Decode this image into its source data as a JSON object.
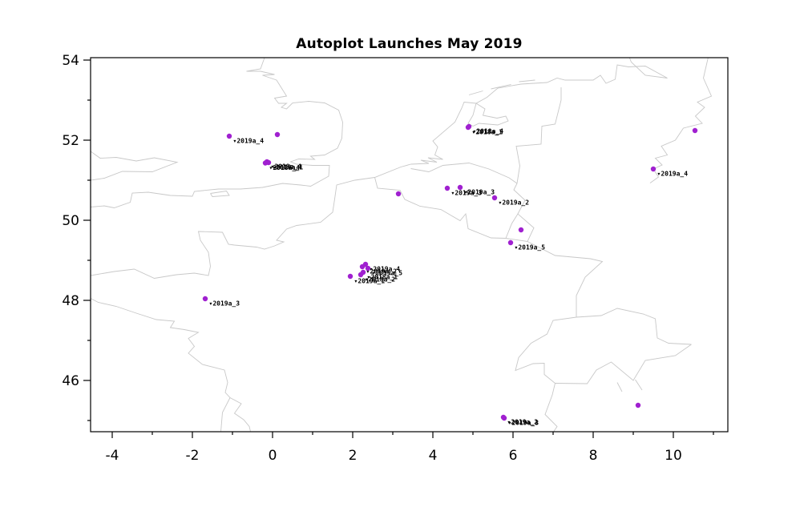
{
  "chart_data": {
    "type": "scatter",
    "title": "Autoplot Launches May 2019",
    "xlabel": "",
    "ylabel": "",
    "xlim": [
      -4.54,
      11.36
    ],
    "ylim": [
      44.72,
      54.06
    ],
    "grid": false,
    "legend": "none",
    "x_ticks_major": [
      -4,
      -2,
      0,
      2,
      4,
      6,
      8,
      10
    ],
    "x_tick_labels": [
      "-4",
      "-2",
      "0",
      "2",
      "4",
      "6",
      "8",
      "10"
    ],
    "y_ticks_major": [
      46,
      48,
      50,
      52,
      54
    ],
    "y_tick_labels": [
      "46",
      "48",
      "50",
      "52",
      "54"
    ],
    "minor_tick_step": 1,
    "marker_color": "#a020d0",
    "map_color": "#c8c8c8",
    "label_marker": "▾",
    "points": [
      {
        "x": -1.08,
        "y": 52.1,
        "label": "2019a_4"
      },
      {
        "x": 0.12,
        "y": 52.14,
        "label": ""
      },
      {
        "x": -0.14,
        "y": 51.46,
        "label": "2019a_4"
      },
      {
        "x": -0.1,
        "y": 51.44,
        "label": "2019a_1"
      },
      {
        "x": -0.18,
        "y": 51.43,
        "label": "2018a_4"
      },
      {
        "x": 4.9,
        "y": 52.34,
        "label": "2018a_4"
      },
      {
        "x": 4.88,
        "y": 52.32,
        "label": "2018a_1"
      },
      {
        "x": 10.54,
        "y": 52.24,
        "label": ""
      },
      {
        "x": 9.5,
        "y": 51.28,
        "label": "2019a_4"
      },
      {
        "x": 4.36,
        "y": 50.8,
        "label": "2019a_3"
      },
      {
        "x": 4.68,
        "y": 50.82,
        "label": "2019a_3"
      },
      {
        "x": 5.54,
        "y": 50.56,
        "label": "2019a_2"
      },
      {
        "x": 3.14,
        "y": 50.66,
        "label": ""
      },
      {
        "x": 6.2,
        "y": 49.76,
        "label": ""
      },
      {
        "x": 5.94,
        "y": 49.44,
        "label": "2019a_5"
      },
      {
        "x": 1.94,
        "y": 48.6,
        "label": "2019a_1"
      },
      {
        "x": 2.24,
        "y": 48.84,
        "label": "2019a_2"
      },
      {
        "x": 2.32,
        "y": 48.9,
        "label": "2019a_4"
      },
      {
        "x": 2.38,
        "y": 48.8,
        "label": "2019a_5"
      },
      {
        "x": 2.26,
        "y": 48.7,
        "label": "2018a_1"
      },
      {
        "x": 2.2,
        "y": 48.64,
        "label": "2018a_2"
      },
      {
        "x": -1.68,
        "y": 48.04,
        "label": "2019a_3"
      },
      {
        "x": 5.76,
        "y": 45.08,
        "label": "2019a_2"
      },
      {
        "x": 5.78,
        "y": 45.06,
        "label": "2019a_3"
      },
      {
        "x": 9.12,
        "y": 45.38,
        "label": ""
      }
    ],
    "map_lines": [
      [
        [
          -0.15,
          54.2
        ],
        [
          -0.3,
          53.78
        ],
        [
          -0.65,
          53.72
        ],
        [
          -0.3,
          53.72
        ],
        [
          0.05,
          53.64
        ],
        [
          -0.25,
          53.62
        ],
        [
          0.1,
          53.5
        ],
        [
          0.35,
          53.1
        ],
        [
          0.05,
          53.05
        ],
        [
          0.15,
          52.92
        ],
        [
          0.35,
          52.92
        ],
        [
          0.22,
          52.82
        ],
        [
          0.35,
          52.78
        ],
        [
          0.5,
          52.93
        ],
        [
          0.9,
          52.97
        ],
        [
          1.3,
          52.93
        ],
        [
          1.65,
          52.75
        ],
        [
          1.75,
          52.45
        ],
        [
          1.73,
          52.05
        ],
        [
          1.62,
          51.8
        ],
        [
          1.3,
          51.63
        ],
        [
          0.95,
          51.6
        ],
        [
          1.05,
          51.52
        ],
        [
          0.65,
          51.53
        ],
        [
          0.45,
          51.46
        ],
        [
          0.6,
          51.4
        ],
        [
          1.0,
          51.37
        ],
        [
          1.42,
          51.37
        ],
        [
          1.4,
          51.1
        ],
        [
          0.95,
          50.85
        ],
        [
          0.7,
          50.88
        ],
        [
          0.25,
          50.92
        ],
        [
          -0.25,
          50.82
        ],
        [
          -0.8,
          50.78
        ],
        [
          -1.35,
          50.78
        ],
        [
          -1.95,
          50.72
        ],
        [
          -2.0,
          50.6
        ],
        [
          -2.55,
          50.62
        ],
        [
          -3.1,
          50.7
        ],
        [
          -3.5,
          50.68
        ],
        [
          -3.55,
          50.45
        ],
        [
          -3.95,
          50.31
        ],
        [
          -4.2,
          50.36
        ],
        [
          -4.54,
          50.33
        ]
      ],
      [
        [
          -4.54,
          51.0
        ],
        [
          -4.2,
          51.05
        ],
        [
          -3.75,
          51.22
        ],
        [
          -3.0,
          51.21
        ],
        [
          -2.38,
          51.45
        ],
        [
          -2.95,
          51.56
        ],
        [
          -3.4,
          51.48
        ],
        [
          -3.9,
          51.57
        ],
        [
          -4.3,
          51.55
        ],
        [
          -4.54,
          51.72
        ]
      ],
      [
        [
          -1.55,
          50.67
        ],
        [
          -1.15,
          50.73
        ],
        [
          -1.08,
          50.62
        ],
        [
          -1.5,
          50.59
        ],
        [
          -1.55,
          50.67
        ]
      ],
      [
        [
          -4.54,
          48.62
        ],
        [
          -3.95,
          48.72
        ],
        [
          -3.45,
          48.78
        ],
        [
          -2.95,
          48.55
        ],
        [
          -2.4,
          48.64
        ],
        [
          -1.95,
          48.68
        ],
        [
          -1.6,
          48.62
        ],
        [
          -1.55,
          48.85
        ],
        [
          -1.6,
          49.2
        ],
        [
          -1.8,
          49.5
        ],
        [
          -1.85,
          49.72
        ],
        [
          -1.25,
          49.7
        ],
        [
          -1.1,
          49.4
        ],
        [
          -0.95,
          49.38
        ],
        [
          -0.4,
          49.33
        ],
        [
          -0.2,
          49.28
        ],
        [
          0.05,
          49.36
        ],
        [
          0.28,
          49.46
        ],
        [
          0.1,
          49.5
        ],
        [
          0.35,
          49.78
        ],
        [
          0.6,
          49.87
        ],
        [
          1.2,
          49.95
        ],
        [
          1.5,
          50.2
        ],
        [
          1.55,
          50.53
        ],
        [
          1.6,
          50.88
        ],
        [
          2.05,
          51.0
        ],
        [
          2.55,
          51.07
        ],
        [
          3.2,
          51.33
        ],
        [
          3.45,
          51.4
        ]
      ],
      [
        [
          3.45,
          51.4
        ],
        [
          3.9,
          51.42
        ],
        [
          3.7,
          51.5
        ],
        [
          4.1,
          51.45
        ],
        [
          3.88,
          51.56
        ],
        [
          4.25,
          51.52
        ],
        [
          4.05,
          51.63
        ],
        [
          4.12,
          51.83
        ],
        [
          4.0,
          51.98
        ],
        [
          4.55,
          52.45
        ],
        [
          4.72,
          52.8
        ],
        [
          4.78,
          52.95
        ],
        [
          5.08,
          52.92
        ],
        [
          5.35,
          53.07
        ],
        [
          5.62,
          53.3
        ],
        [
          6.2,
          53.4
        ],
        [
          6.85,
          53.44
        ],
        [
          7.1,
          53.55
        ],
        [
          7.3,
          53.5
        ],
        [
          8.0,
          53.5
        ],
        [
          8.18,
          53.62
        ],
        [
          8.32,
          53.42
        ],
        [
          8.55,
          53.52
        ],
        [
          8.6,
          53.88
        ],
        [
          8.88,
          53.83
        ],
        [
          9.3,
          53.85
        ],
        [
          9.85,
          53.55
        ],
        [
          9.3,
          53.62
        ],
        [
          8.95,
          53.95
        ],
        [
          8.85,
          54.2
        ]
      ],
      [
        [
          5.08,
          52.92
        ],
        [
          5.3,
          52.78
        ],
        [
          5.25,
          52.62
        ],
        [
          5.6,
          52.55
        ],
        [
          5.82,
          52.6
        ],
        [
          5.88,
          52.48
        ],
        [
          5.62,
          52.38
        ],
        [
          5.15,
          52.42
        ],
        [
          5.0,
          52.35
        ],
        [
          4.88,
          52.42
        ],
        [
          5.0,
          52.62
        ],
        [
          5.08,
          52.92
        ]
      ],
      [
        [
          4.9,
          53.13
        ],
        [
          5.25,
          53.23
        ]
      ],
      [
        [
          5.45,
          53.28
        ],
        [
          5.95,
          53.39
        ]
      ],
      [
        [
          6.15,
          53.46
        ],
        [
          6.55,
          53.5
        ]
      ],
      [
        [
          2.55,
          51.07
        ],
        [
          2.62,
          50.8
        ],
        [
          3.18,
          50.75
        ],
        [
          3.3,
          50.52
        ],
        [
          3.68,
          50.35
        ],
        [
          4.2,
          50.27
        ],
        [
          4.68,
          49.99
        ],
        [
          4.82,
          50.16
        ],
        [
          4.88,
          49.79
        ],
        [
          5.45,
          49.56
        ],
        [
          5.82,
          49.55
        ]
      ],
      [
        [
          5.82,
          49.55
        ],
        [
          6.36,
          49.47
        ],
        [
          6.52,
          49.81
        ],
        [
          6.12,
          50.16
        ],
        [
          5.97,
          49.92
        ],
        [
          5.82,
          49.55
        ]
      ],
      [
        [
          6.12,
          50.16
        ],
        [
          6.3,
          50.5
        ],
        [
          6.02,
          50.76
        ],
        [
          6.1,
          50.92
        ]
      ],
      [
        [
          3.45,
          51.29
        ],
        [
          3.9,
          51.21
        ],
        [
          4.25,
          51.37
        ],
        [
          4.9,
          51.43
        ],
        [
          5.4,
          51.28
        ],
        [
          5.9,
          51.06
        ],
        [
          6.1,
          50.92
        ]
      ],
      [
        [
          6.1,
          50.92
        ],
        [
          6.17,
          51.36
        ],
        [
          6.08,
          51.85
        ],
        [
          6.7,
          51.9
        ],
        [
          6.72,
          52.35
        ],
        [
          7.05,
          52.4
        ],
        [
          7.2,
          53.0
        ],
        [
          7.2,
          53.32
        ]
      ],
      [
        [
          6.36,
          49.47
        ],
        [
          7.05,
          49.12
        ],
        [
          7.93,
          49.04
        ],
        [
          8.23,
          48.97
        ],
        [
          7.8,
          48.58
        ],
        [
          7.58,
          48.12
        ],
        [
          7.58,
          47.58
        ]
      ],
      [
        [
          7.58,
          47.58
        ],
        [
          7.0,
          47.5
        ],
        [
          6.85,
          47.16
        ],
        [
          6.45,
          46.93
        ],
        [
          6.14,
          46.57
        ],
        [
          6.06,
          46.25
        ],
        [
          6.5,
          46.42
        ],
        [
          6.78,
          46.43
        ],
        [
          6.78,
          46.15
        ],
        [
          7.05,
          45.93
        ],
        [
          6.98,
          45.64
        ],
        [
          6.8,
          45.15
        ],
        [
          7.1,
          44.85
        ],
        [
          6.93,
          44.6
        ]
      ],
      [
        [
          7.58,
          47.58
        ],
        [
          8.2,
          47.62
        ],
        [
          8.6,
          47.8
        ],
        [
          9.25,
          47.66
        ],
        [
          9.55,
          47.54
        ],
        [
          9.6,
          47.06
        ],
        [
          9.88,
          46.93
        ],
        [
          10.45,
          46.9
        ]
      ],
      [
        [
          10.45,
          46.9
        ],
        [
          10.05,
          46.62
        ],
        [
          9.3,
          46.5
        ],
        [
          9.0,
          46.0
        ],
        [
          8.45,
          46.46
        ],
        [
          8.08,
          46.26
        ],
        [
          7.85,
          45.92
        ],
        [
          7.05,
          45.93
        ]
      ],
      [
        [
          10.9,
          54.2
        ],
        [
          10.75,
          53.55
        ],
        [
          10.95,
          53.1
        ],
        [
          10.6,
          52.95
        ],
        [
          10.78,
          52.82
        ],
        [
          10.55,
          52.6
        ],
        [
          10.72,
          52.42
        ],
        [
          10.25,
          52.3
        ],
        [
          10.05,
          52.0
        ],
        [
          9.7,
          51.85
        ],
        [
          9.85,
          51.63
        ],
        [
          9.55,
          51.55
        ],
        [
          9.72,
          51.38
        ],
        [
          9.5,
          51.28
        ],
        [
          9.63,
          51.08
        ],
        [
          9.42,
          50.93
        ]
      ],
      [
        [
          -4.54,
          48.05
        ],
        [
          -4.35,
          47.95
        ],
        [
          -3.9,
          47.85
        ],
        [
          -3.4,
          47.68
        ],
        [
          -2.9,
          47.52
        ],
        [
          -2.45,
          47.48
        ],
        [
          -2.55,
          47.32
        ],
        [
          -2.2,
          47.27
        ],
        [
          -1.85,
          47.2
        ],
        [
          -2.1,
          47.05
        ],
        [
          -1.95,
          46.85
        ],
        [
          -2.1,
          46.68
        ],
        [
          -1.75,
          46.4
        ],
        [
          -1.2,
          46.26
        ],
        [
          -1.12,
          45.95
        ],
        [
          -1.18,
          45.7
        ],
        [
          -1.06,
          45.57
        ],
        [
          -0.78,
          45.42
        ],
        [
          -0.95,
          45.18
        ],
        [
          -0.72,
          45.02
        ],
        [
          -0.58,
          44.85
        ],
        [
          -0.52,
          44.6
        ]
      ],
      [
        [
          -1.06,
          45.57
        ],
        [
          -1.25,
          45.2
        ],
        [
          -1.3,
          44.6
        ]
      ],
      [
        [
          8.6,
          45.95
        ],
        [
          8.72,
          45.72
        ]
      ],
      [
        [
          9.05,
          46.02
        ],
        [
          9.22,
          45.76
        ]
      ]
    ]
  }
}
